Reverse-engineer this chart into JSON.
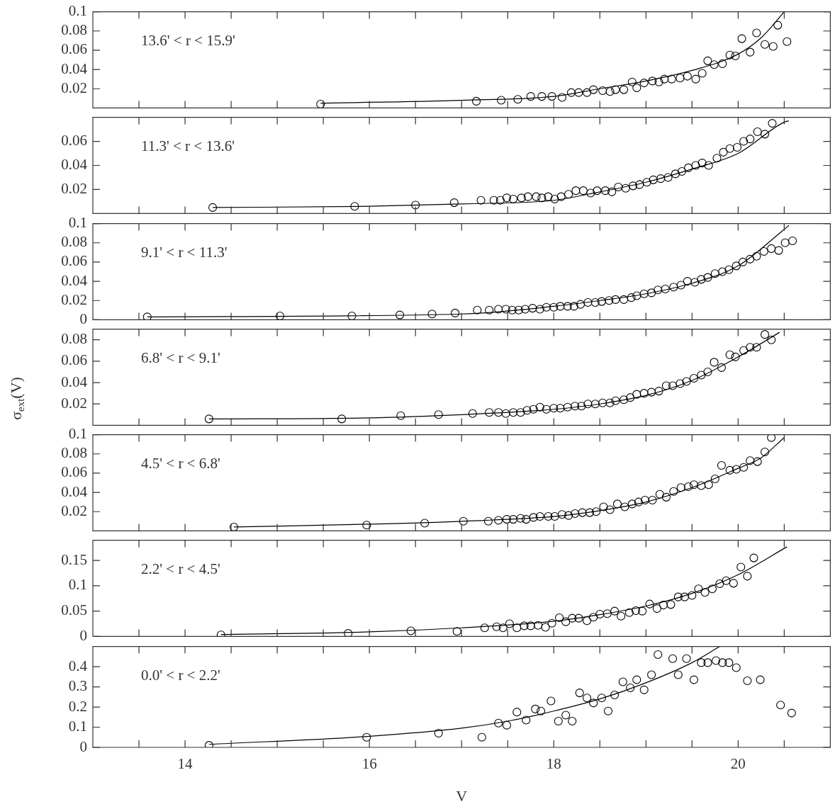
{
  "chart_data": [
    {
      "type": "scatter",
      "annotations": [
        "13.6' < r < 15.9'"
      ],
      "xlim": [
        13,
        21
      ],
      "xticks": [
        {
          "value": 13.5,
          "label": null
        },
        14,
        {
          "value": 14.5,
          "label": null
        },
        {
          "value": 15,
          "label": null
        },
        {
          "value": 15.5,
          "label": null
        },
        16,
        {
          "value": 16.5,
          "label": null
        },
        {
          "value": 17,
          "label": null
        },
        {
          "value": 17.5,
          "label": null
        },
        18,
        {
          "value": 18.5,
          "label": null
        },
        {
          "value": 19,
          "label": null
        },
        {
          "value": 19.5,
          "label": null
        },
        20,
        {
          "value": 20.5,
          "label": null
        }
      ],
      "ylim": [
        0,
        0.1
      ],
      "yticks": [
        0.02,
        0.04,
        0.06,
        0.08,
        0.1
      ],
      "tick_labels": "y",
      "series": [
        {
          "marker": "circle",
          "color": "#000000",
          "x": [
            15.47,
            17.16,
            17.43,
            17.61,
            17.75,
            17.87,
            17.98,
            18.09,
            18.19,
            18.27,
            18.36,
            18.43,
            18.53,
            18.61,
            18.67,
            18.76,
            18.85,
            18.9,
            18.98,
            19.07,
            19.14,
            19.2,
            19.28,
            19.37,
            19.45,
            19.54,
            19.61,
            19.67,
            19.74,
            19.83,
            19.91,
            19.97,
            20.04,
            20.13,
            20.2,
            20.29,
            20.38,
            20.43,
            20.53
          ],
          "values": [
            0.004,
            0.007,
            0.008,
            0.009,
            0.012,
            0.012,
            0.012,
            0.011,
            0.016,
            0.016,
            0.016,
            0.019,
            0.018,
            0.017,
            0.019,
            0.019,
            0.027,
            0.021,
            0.026,
            0.028,
            0.027,
            0.03,
            0.03,
            0.031,
            0.033,
            0.03,
            0.036,
            0.049,
            0.045,
            0.046,
            0.055,
            0.054,
            0.072,
            0.058,
            0.078,
            0.066,
            0.064,
            0.086,
            0.069
          ]
        },
        {
          "type": "line",
          "marker": "none",
          "color": "#000000",
          "x": [
            15.47,
            17,
            18,
            18.5,
            19,
            19.5,
            20,
            20.25,
            20.5
          ],
          "values": [
            0.005,
            0.008,
            0.012,
            0.02,
            0.028,
            0.039,
            0.056,
            0.073,
            0.1
          ]
        }
      ]
    },
    {
      "type": "scatter",
      "annotations": [
        "11.3' < r < 13.6'"
      ],
      "xlim": [
        13,
        21
      ],
      "xticks": [
        {
          "value": 13.5,
          "label": null
        },
        14,
        {
          "value": 14.5,
          "label": null
        },
        {
          "value": 15,
          "label": null
        },
        {
          "value": 15.5,
          "label": null
        },
        16,
        {
          "value": 16.5,
          "label": null
        },
        {
          "value": 17,
          "label": null
        },
        {
          "value": 17.5,
          "label": null
        },
        18,
        {
          "value": 18.5,
          "label": null
        },
        {
          "value": 19,
          "label": null
        },
        {
          "value": 19.5,
          "label": null
        },
        20,
        {
          "value": 20.5,
          "label": null
        }
      ],
      "ylim": [
        0,
        0.08
      ],
      "yticks": [
        0.02,
        0.04,
        0.06
      ],
      "tick_labels": "y",
      "series": [
        {
          "marker": "circle",
          "color": "#000000",
          "x": [
            14.3,
            15.84,
            16.5,
            16.92,
            17.21,
            17.35,
            17.42,
            17.49,
            17.56,
            17.65,
            17.72,
            17.81,
            17.87,
            17.94,
            18.01,
            18.08,
            18.16,
            18.24,
            18.32,
            18.4,
            18.47,
            18.56,
            18.63,
            18.7,
            18.78,
            18.86,
            18.93,
            19.01,
            19.08,
            19.16,
            19.24,
            19.32,
            19.39,
            19.46,
            19.54,
            19.61,
            19.68,
            19.77,
            19.84,
            19.91,
            19.99,
            20.06,
            20.13,
            20.21,
            20.29,
            20.37
          ],
          "values": [
            0.005,
            0.006,
            0.007,
            0.009,
            0.011,
            0.011,
            0.011,
            0.013,
            0.012,
            0.013,
            0.014,
            0.014,
            0.013,
            0.014,
            0.012,
            0.014,
            0.016,
            0.019,
            0.019,
            0.017,
            0.019,
            0.019,
            0.018,
            0.022,
            0.021,
            0.023,
            0.024,
            0.026,
            0.028,
            0.029,
            0.03,
            0.033,
            0.035,
            0.038,
            0.04,
            0.042,
            0.04,
            0.046,
            0.051,
            0.054,
            0.055,
            0.06,
            0.062,
            0.068,
            0.066,
            0.075
          ]
        },
        {
          "type": "line",
          "marker": "none",
          "color": "#000000",
          "x": [
            14.3,
            16,
            17,
            18,
            18.5,
            19,
            19.5,
            20,
            20.5,
            20.55
          ],
          "values": [
            0.005,
            0.006,
            0.008,
            0.011,
            0.018,
            0.026,
            0.037,
            0.05,
            0.076,
            0.077
          ]
        }
      ]
    },
    {
      "type": "scatter",
      "annotations": [
        "9.1' < r < 11.3'"
      ],
      "xlim": [
        13,
        21
      ],
      "xticks": [
        {
          "value": 13.5,
          "label": null
        },
        14,
        {
          "value": 14.5,
          "label": null
        },
        {
          "value": 15,
          "label": null
        },
        {
          "value": 15.5,
          "label": null
        },
        16,
        {
          "value": 16.5,
          "label": null
        },
        {
          "value": 17,
          "label": null
        },
        {
          "value": 17.5,
          "label": null
        },
        18,
        {
          "value": 18.5,
          "label": null
        },
        {
          "value": 19,
          "label": null
        },
        {
          "value": 19.5,
          "label": null
        },
        20,
        {
          "value": 20.5,
          "label": null
        }
      ],
      "ylim": [
        0,
        0.1
      ],
      "yticks": [
        0,
        0.02,
        0.04,
        0.06,
        0.08,
        0.1
      ],
      "tick_labels": "y",
      "series": [
        {
          "marker": "circle",
          "color": "#000000",
          "x": [
            13.59,
            15.03,
            15.81,
            16.33,
            16.68,
            16.93,
            17.17,
            17.3,
            17.4,
            17.48,
            17.55,
            17.62,
            17.69,
            17.77,
            17.85,
            17.92,
            18,
            18.07,
            18.15,
            18.22,
            18.29,
            18.37,
            18.45,
            18.52,
            18.6,
            18.67,
            18.76,
            18.84,
            18.9,
            18.98,
            19.06,
            19.13,
            19.21,
            19.3,
            19.38,
            19.45,
            19.53,
            19.6,
            19.67,
            19.75,
            19.83,
            19.9,
            19.98,
            20.05,
            20.13,
            20.2,
            20.28,
            20.36,
            20.44,
            20.51,
            20.59
          ],
          "values": [
            0.003,
            0.004,
            0.004,
            0.005,
            0.006,
            0.007,
            0.01,
            0.01,
            0.011,
            0.011,
            0.01,
            0.01,
            0.011,
            0.012,
            0.011,
            0.013,
            0.013,
            0.014,
            0.014,
            0.014,
            0.016,
            0.018,
            0.018,
            0.019,
            0.02,
            0.021,
            0.021,
            0.023,
            0.025,
            0.027,
            0.028,
            0.031,
            0.032,
            0.034,
            0.036,
            0.04,
            0.039,
            0.042,
            0.044,
            0.048,
            0.05,
            0.052,
            0.056,
            0.06,
            0.063,
            0.066,
            0.071,
            0.074,
            0.072,
            0.08,
            0.082
          ]
        },
        {
          "type": "line",
          "marker": "none",
          "color": "#000000",
          "x": [
            13.59,
            17,
            18,
            18.5,
            19,
            19.5,
            20,
            20.5,
            20.55
          ],
          "values": [
            0.003,
            0.006,
            0.014,
            0.02,
            0.027,
            0.038,
            0.056,
            0.094,
            0.098
          ]
        }
      ]
    },
    {
      "type": "scatter",
      "annotations": [
        "6.8' < r < 9.1'"
      ],
      "ylabel": "σ$_{ext}$(V)",
      "xlim": [
        13,
        21
      ],
      "xticks": [
        {
          "value": 13.5,
          "label": null
        },
        14,
        {
          "value": 14.5,
          "label": null
        },
        {
          "value": 15,
          "label": null
        },
        {
          "value": 15.5,
          "label": null
        },
        16,
        {
          "value": 16.5,
          "label": null
        },
        {
          "value": 17,
          "label": null
        },
        {
          "value": 17.5,
          "label": null
        },
        18,
        {
          "value": 18.5,
          "label": null
        },
        {
          "value": 19,
          "label": null
        },
        {
          "value": 19.5,
          "label": null
        },
        20,
        {
          "value": 20.5,
          "label": null
        }
      ],
      "ylim": [
        0,
        0.09
      ],
      "yticks": [
        0.02,
        0.04,
        0.06,
        0.08
      ],
      "tick_labels": "y",
      "series": [
        {
          "marker": "circle",
          "color": "#000000",
          "x": [
            14.26,
            15.7,
            16.34,
            16.75,
            17.12,
            17.3,
            17.4,
            17.48,
            17.56,
            17.64,
            17.71,
            17.78,
            17.85,
            17.92,
            18,
            18.07,
            18.15,
            18.23,
            18.3,
            18.37,
            18.45,
            18.53,
            18.61,
            18.67,
            18.76,
            18.83,
            18.9,
            18.98,
            19.06,
            19.14,
            19.22,
            19.29,
            19.37,
            19.44,
            19.52,
            19.6,
            19.67,
            19.74,
            19.82,
            19.91,
            19.97,
            20.06,
            20.13,
            20.2,
            20.29,
            20.36
          ],
          "values": [
            0.006,
            0.006,
            0.009,
            0.01,
            0.011,
            0.012,
            0.012,
            0.011,
            0.012,
            0.012,
            0.014,
            0.015,
            0.017,
            0.015,
            0.016,
            0.016,
            0.017,
            0.018,
            0.018,
            0.02,
            0.02,
            0.021,
            0.021,
            0.023,
            0.024,
            0.026,
            0.029,
            0.03,
            0.031,
            0.032,
            0.037,
            0.037,
            0.039,
            0.041,
            0.044,
            0.047,
            0.05,
            0.059,
            0.054,
            0.066,
            0.064,
            0.07,
            0.073,
            0.073,
            0.085,
            0.08
          ]
        },
        {
          "type": "line",
          "marker": "none",
          "color": "#000000",
          "x": [
            14.26,
            16,
            17,
            18,
            18.5,
            19,
            19.5,
            20,
            20.45
          ],
          "values": [
            0.006,
            0.007,
            0.01,
            0.015,
            0.02,
            0.028,
            0.042,
            0.064,
            0.087
          ]
        }
      ]
    },
    {
      "type": "scatter",
      "annotations": [
        "4.5' < r < 6.8'"
      ],
      "xlim": [
        13,
        21
      ],
      "xticks": [
        {
          "value": 13.5,
          "label": null
        },
        14,
        {
          "value": 14.5,
          "label": null
        },
        {
          "value": 15,
          "label": null
        },
        {
          "value": 15.5,
          "label": null
        },
        16,
        {
          "value": 16.5,
          "label": null
        },
        {
          "value": 17,
          "label": null
        },
        {
          "value": 17.5,
          "label": null
        },
        18,
        {
          "value": 18.5,
          "label": null
        },
        {
          "value": 19,
          "label": null
        },
        {
          "value": 19.5,
          "label": null
        },
        20,
        {
          "value": 20.5,
          "label": null
        }
      ],
      "ylim": [
        0,
        0.1
      ],
      "yticks": [
        0.02,
        0.04,
        0.06,
        0.08,
        0.1
      ],
      "tick_labels": "y",
      "series": [
        {
          "marker": "circle",
          "color": "#000000",
          "x": [
            14.53,
            15.97,
            16.6,
            17.02,
            17.29,
            17.4,
            17.49,
            17.56,
            17.64,
            17.7,
            17.78,
            17.85,
            17.94,
            18.01,
            18.09,
            18.16,
            18.23,
            18.31,
            18.39,
            18.46,
            18.54,
            18.61,
            18.69,
            18.77,
            18.85,
            18.92,
            18.99,
            19.07,
            19.15,
            19.22,
            19.3,
            19.38,
            19.46,
            19.52,
            19.6,
            19.68,
            19.75,
            19.82,
            19.91,
            19.98,
            20.06,
            20.13,
            20.21,
            20.29,
            20.36
          ],
          "values": [
            0.004,
            0.006,
            0.008,
            0.01,
            0.01,
            0.011,
            0.012,
            0.012,
            0.013,
            0.012,
            0.014,
            0.015,
            0.015,
            0.015,
            0.017,
            0.016,
            0.018,
            0.019,
            0.019,
            0.02,
            0.025,
            0.022,
            0.028,
            0.025,
            0.028,
            0.03,
            0.032,
            0.032,
            0.038,
            0.035,
            0.041,
            0.045,
            0.046,
            0.048,
            0.047,
            0.048,
            0.054,
            0.068,
            0.063,
            0.064,
            0.066,
            0.073,
            0.072,
            0.082,
            0.097
          ]
        },
        {
          "type": "line",
          "marker": "none",
          "color": "#000000",
          "x": [
            14.53,
            16,
            17,
            18,
            18.5,
            19,
            19.5,
            20,
            20.25,
            20.5
          ],
          "values": [
            0.004,
            0.007,
            0.01,
            0.015,
            0.021,
            0.03,
            0.045,
            0.065,
            0.076,
            0.097
          ]
        }
      ]
    },
    {
      "type": "scatter",
      "annotations": [
        "2.2' < r < 4.5'"
      ],
      "xlim": [
        13,
        21
      ],
      "xticks": [
        {
          "value": 13.5,
          "label": null
        },
        14,
        {
          "value": 14.5,
          "label": null
        },
        {
          "value": 15,
          "label": null
        },
        {
          "value": 15.5,
          "label": null
        },
        16,
        {
          "value": 16.5,
          "label": null
        },
        {
          "value": 17,
          "label": null
        },
        {
          "value": 17.5,
          "label": null
        },
        18,
        {
          "value": 18.5,
          "label": null
        },
        {
          "value": 19,
          "label": null
        },
        {
          "value": 19.5,
          "label": null
        },
        20,
        {
          "value": 20.5,
          "label": null
        }
      ],
      "ylim": [
        0,
        0.19
      ],
      "yticks": [
        0,
        0.05,
        0.1,
        0.15
      ],
      "tick_labels": "y",
      "series": [
        {
          "marker": "circle",
          "color": "#000000",
          "x": [
            14.39,
            15.77,
            16.45,
            16.95,
            17.25,
            17.38,
            17.45,
            17.52,
            17.6,
            17.68,
            17.75,
            17.83,
            17.91,
            17.98,
            18.06,
            18.13,
            18.2,
            18.27,
            18.36,
            18.43,
            18.5,
            18.58,
            18.66,
            18.73,
            18.82,
            18.89,
            18.96,
            19.04,
            19.12,
            19.19,
            19.27,
            19.35,
            19.42,
            19.5,
            19.57,
            19.64,
            19.72,
            19.8,
            19.87,
            19.95,
            20.03,
            20.1,
            20.17
          ],
          "values": [
            0.003,
            0.006,
            0.011,
            0.01,
            0.017,
            0.019,
            0.017,
            0.025,
            0.017,
            0.021,
            0.021,
            0.022,
            0.018,
            0.026,
            0.037,
            0.029,
            0.036,
            0.036,
            0.031,
            0.038,
            0.044,
            0.045,
            0.05,
            0.04,
            0.047,
            0.051,
            0.05,
            0.064,
            0.055,
            0.062,
            0.063,
            0.078,
            0.078,
            0.081,
            0.094,
            0.087,
            0.094,
            0.104,
            0.11,
            0.105,
            0.137,
            0.119,
            0.155
          ]
        },
        {
          "type": "line",
          "marker": "none",
          "color": "#000000",
          "x": [
            14.39,
            16,
            17,
            18,
            18.5,
            19,
            19.5,
            20,
            20.53
          ],
          "values": [
            0.004,
            0.009,
            0.017,
            0.03,
            0.043,
            0.06,
            0.085,
            0.122,
            0.177
          ]
        }
      ]
    },
    {
      "type": "scatter",
      "annotations": [
        "0.0' < r < 2.2'"
      ],
      "xlabel": "V",
      "xlim": [
        13,
        21
      ],
      "xticks": [
        {
          "value": 13.5,
          "label": null
        },
        14,
        {
          "value": 14.5,
          "label": null
        },
        {
          "value": 15,
          "label": null
        },
        {
          "value": 15.5,
          "label": null
        },
        16,
        {
          "value": 16.5,
          "label": null
        },
        {
          "value": 17,
          "label": null
        },
        {
          "value": 17.5,
          "label": null
        },
        18,
        {
          "value": 18.5,
          "label": null
        },
        {
          "value": 19,
          "label": null
        },
        {
          "value": 19.5,
          "label": null
        },
        20,
        {
          "value": 20.5,
          "label": null
        }
      ],
      "ylim": [
        0,
        0.5
      ],
      "yticks": [
        0,
        0.1,
        0.2,
        0.3,
        0.4
      ],
      "series": [
        {
          "marker": "circle",
          "color": "#000000",
          "x": [
            14.26,
            15.97,
            16.75,
            17.22,
            17.4,
            17.49,
            17.6,
            17.7,
            17.8,
            17.86,
            17.97,
            18.05,
            18.13,
            18.2,
            18.28,
            18.36,
            18.43,
            18.52,
            18.59,
            18.66,
            18.75,
            18.83,
            18.9,
            18.98,
            19.06,
            19.13,
            19.29,
            19.35,
            19.44,
            19.52,
            19.6,
            19.67,
            19.76,
            19.83,
            19.9,
            19.98,
            20.1,
            20.24,
            20.46,
            20.58
          ],
          "values": [
            0.01,
            0.05,
            0.07,
            0.05,
            0.12,
            0.11,
            0.175,
            0.135,
            0.19,
            0.18,
            0.23,
            0.13,
            0.16,
            0.13,
            0.27,
            0.245,
            0.22,
            0.245,
            0.18,
            0.26,
            0.325,
            0.295,
            0.335,
            0.285,
            0.36,
            0.46,
            0.44,
            0.36,
            0.44,
            0.335,
            0.42,
            0.42,
            0.43,
            0.42,
            0.42,
            0.395,
            0.33,
            0.335,
            0.21,
            0.17
          ]
        },
        {
          "type": "line",
          "marker": "none",
          "color": "#000000",
          "x": [
            14.26,
            16,
            17,
            17.5,
            18,
            18.5,
            19,
            19.5,
            19.8
          ],
          "values": [
            0.015,
            0.055,
            0.095,
            0.13,
            0.18,
            0.24,
            0.32,
            0.42,
            0.5
          ]
        }
      ]
    }
  ]
}
